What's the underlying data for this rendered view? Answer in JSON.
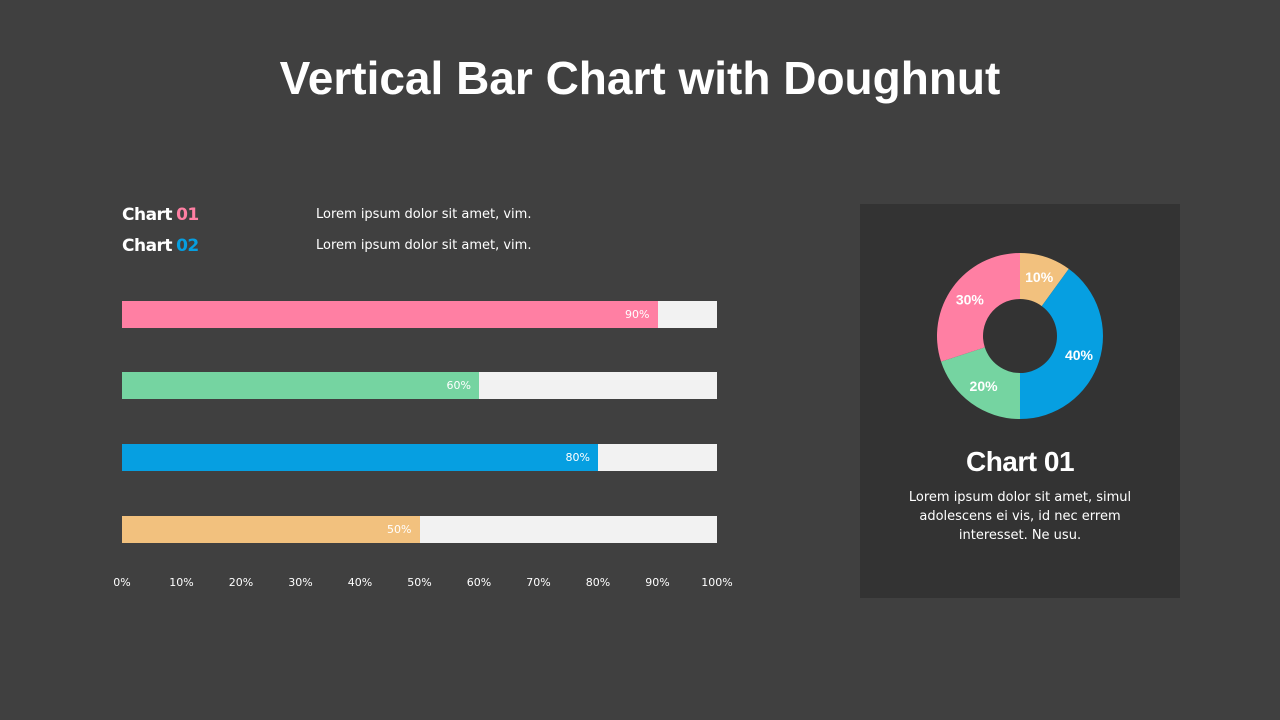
{
  "title": "Vertical Bar Chart with Doughnut",
  "legend": [
    {
      "name": "Chart",
      "num": "01",
      "color": "#ff7fa3",
      "desc": "Lorem ipsum dolor sit amet, vim."
    },
    {
      "name": "Chart",
      "num": "02",
      "color": "#069fe1",
      "desc": "Lorem ipsum dolor sit amet, vim."
    }
  ],
  "panel": {
    "title": "Chart 01",
    "desc": "Lorem ipsum dolor sit amet, simul adolescens ei vis, id nec errem interesset. Ne usu."
  },
  "chart_data": [
    {
      "type": "bar",
      "orientation": "horizontal",
      "values": [
        90,
        60,
        80,
        50
      ],
      "value_labels": [
        "90%",
        "60%",
        "80%",
        "50%"
      ],
      "colors": [
        "#ff7fa3",
        "#75d4a1",
        "#069fe1",
        "#f2c17e"
      ],
      "track_color": "#f2f2f2",
      "xlim": [
        0,
        100
      ],
      "tick_labels": [
        "0%",
        "10%",
        "20%",
        "30%",
        "40%",
        "50%",
        "60%",
        "70%",
        "80%",
        "90%",
        "100%"
      ],
      "grid": false
    },
    {
      "type": "pie",
      "variant": "doughnut",
      "values": [
        10,
        40,
        20,
        30
      ],
      "labels": [
        "10%",
        "40%",
        "20%",
        "30%"
      ],
      "colors": [
        "#f2c17e",
        "#069fe1",
        "#75d4a1",
        "#ff7fa3"
      ],
      "hole_color": "#333333"
    }
  ]
}
